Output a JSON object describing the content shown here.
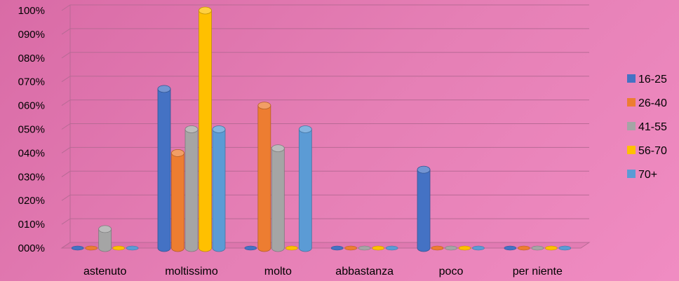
{
  "chart_data": {
    "type": "bar",
    "title": "",
    "xlabel": "",
    "ylabel": "",
    "ylim": [
      0,
      100
    ],
    "yticks": [
      "000%",
      "010%",
      "020%",
      "030%",
      "040%",
      "050%",
      "060%",
      "070%",
      "080%",
      "090%",
      "100%"
    ],
    "categories": [
      "astenuto",
      "moltissimo",
      "molto",
      "abbastanza",
      "poco",
      "per niente"
    ],
    "series": [
      {
        "name": "16-25",
        "color": "#4472c4",
        "values": [
          0,
          67,
          0,
          0,
          33,
          0
        ]
      },
      {
        "name": "26-40",
        "color": "#ed7d31",
        "values": [
          0,
          40,
          60,
          0,
          0,
          0
        ]
      },
      {
        "name": "41-55",
        "color": "#a5a5a5",
        "values": [
          8,
          50,
          42,
          0,
          0,
          0
        ]
      },
      {
        "name": "56-70",
        "color": "#ffc000",
        "values": [
          0,
          100,
          0,
          0,
          0,
          0
        ]
      },
      {
        "name": "70+",
        "color": "#5b9bd5",
        "values": [
          0,
          50,
          50,
          0,
          0,
          0
        ]
      }
    ],
    "legend": "right",
    "grid": true
  }
}
